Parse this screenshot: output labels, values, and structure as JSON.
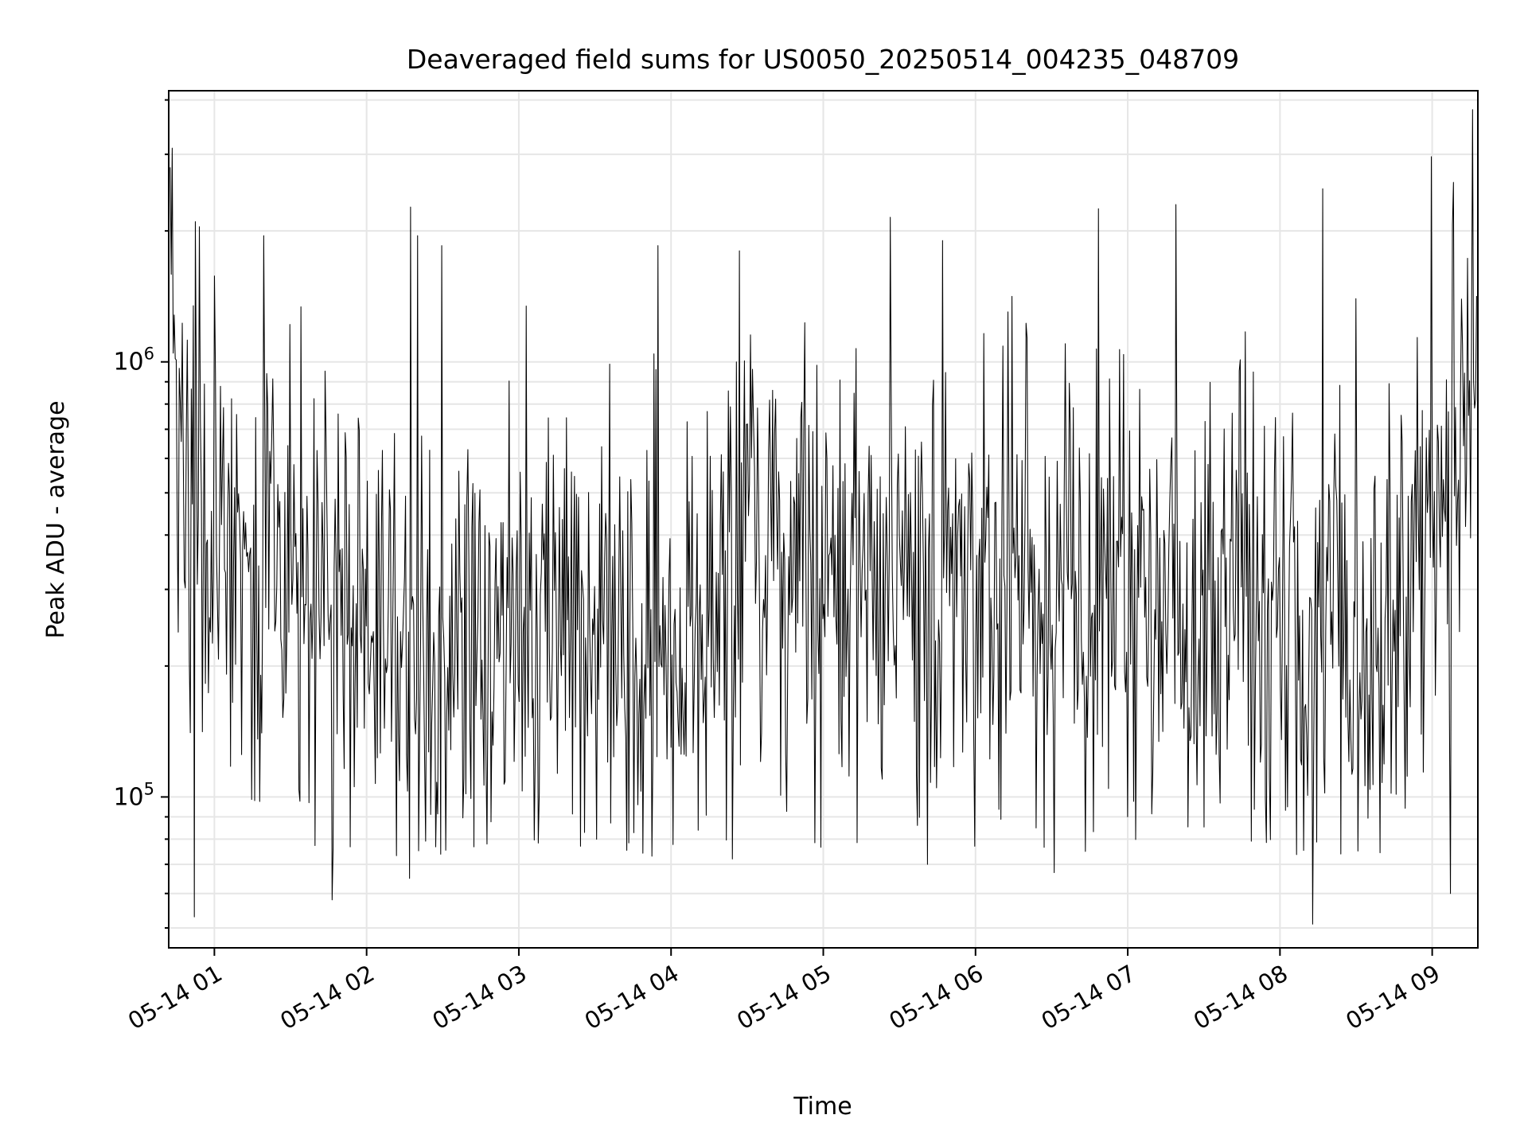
{
  "chart_data": {
    "type": "line",
    "title": "Deaveraged field sums for US0050_20250514_004235_048709",
    "xlabel": "Time",
    "ylabel": "Peak ADU - average",
    "xscale": "time",
    "yscale": "log",
    "xlim": [
      "05-14 00:42",
      "05-14 09:18"
    ],
    "ylim": [
      45000,
      4200000
    ],
    "x_ticks": [
      "05-14 01",
      "05-14 02",
      "05-14 03",
      "05-14 04",
      "05-14 05",
      "05-14 06",
      "05-14 07",
      "05-14 08",
      "05-14 09"
    ],
    "y_ticks": [
      100000,
      1000000
    ],
    "y_tick_labels": [
      {
        "base": "10",
        "exp": "5"
      },
      {
        "base": "10",
        "exp": "6"
      }
    ],
    "grid": true,
    "series": [
      {
        "color": "#000000",
        "x_start": "05-14 00:42:35",
        "x_end": "05-14 09:17:30",
        "n_points": 1300,
        "noise": {
          "median": 300000,
          "log10_sd": 0.27
        },
        "trend": [
          {
            "t": "05-14 00:42",
            "v": 750000
          },
          {
            "t": "05-14 01:00",
            "v": 340000
          },
          {
            "t": "05-14 01:30",
            "v": 280000
          },
          {
            "t": "05-14 02:00",
            "v": 250000
          },
          {
            "t": "05-14 02:20",
            "v": 200000
          },
          {
            "t": "05-14 02:45",
            "v": 230000
          },
          {
            "t": "05-14 03:00",
            "v": 280000
          },
          {
            "t": "05-14 03:30",
            "v": 220000
          },
          {
            "t": "05-14 04:00",
            "v": 230000
          },
          {
            "t": "05-14 04:30",
            "v": 360000
          },
          {
            "t": "05-14 05:00",
            "v": 320000
          },
          {
            "t": "05-14 05:30",
            "v": 340000
          },
          {
            "t": "05-14 06:00",
            "v": 290000
          },
          {
            "t": "05-14 06:30",
            "v": 270000
          },
          {
            "t": "05-14 07:00",
            "v": 300000
          },
          {
            "t": "05-14 07:30",
            "v": 260000
          },
          {
            "t": "05-14 08:00",
            "v": 250000
          },
          {
            "t": "05-14 08:20",
            "v": 230000
          },
          {
            "t": "05-14 08:45",
            "v": 310000
          },
          {
            "t": "05-14 09:00",
            "v": 360000
          },
          {
            "t": "05-14 09:17",
            "v": 700000
          }
        ],
        "peaks": [
          {
            "t": "05-14 00:42:40",
            "v": 2800000
          },
          {
            "t": "05-14 00:43:30",
            "v": 3100000
          },
          {
            "t": "05-14 00:52:30",
            "v": 2100000
          },
          {
            "t": "05-14 01:19:30",
            "v": 1950000
          },
          {
            "t": "05-14 02:20:00",
            "v": 1950000
          },
          {
            "t": "05-14 02:29:30",
            "v": 1850000
          },
          {
            "t": "05-14 03:55:00",
            "v": 1850000
          },
          {
            "t": "05-14 04:27:00",
            "v": 1800000
          },
          {
            "t": "05-14 05:47:00",
            "v": 1900000
          },
          {
            "t": "05-14 07:19:00",
            "v": 2300000
          },
          {
            "t": "05-14 08:17:00",
            "v": 2500000
          },
          {
            "t": "05-14 09:16:00",
            "v": 3800000
          }
        ],
        "troughs": [
          {
            "t": "05-14 00:52:00",
            "v": 53000
          },
          {
            "t": "05-14 01:46:30",
            "v": 58000
          },
          {
            "t": "05-14 02:17:00",
            "v": 65000
          },
          {
            "t": "05-14 05:41:00",
            "v": 70000
          },
          {
            "t": "05-14 06:31:00",
            "v": 67000
          },
          {
            "t": "05-14 08:13:00",
            "v": 51000
          },
          {
            "t": "05-14 09:07:00",
            "v": 60000
          }
        ]
      }
    ]
  }
}
